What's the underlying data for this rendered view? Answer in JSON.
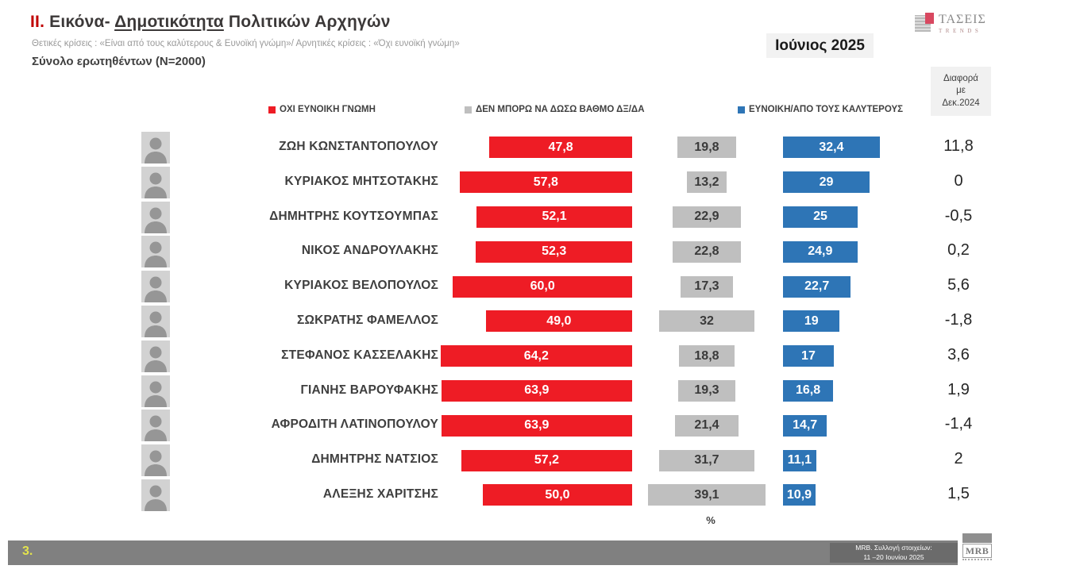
{
  "header": {
    "title_num": "ΙΙ.",
    "title_mid": " Εικόνα- ",
    "title_underlined": "Δημοτικότητα",
    "title_tail": " Πολιτικών Αρχηγών",
    "subtitle": "Θετικές κρίσεις : «Είναι από τους καλύτερους &  Ευνοϊκή γνώμη»/ Αρνητικές κρίσεις : «Όχι ευνοϊκή γνώμη»",
    "sample": "Σύνολο ερωτηθέντων (N=2000)",
    "date_badge": "Ιούνιος 2025",
    "taseis_logo": {
      "name": "ΤΑΣΕΙΣ",
      "sub": "TRENDS"
    },
    "diff_header_lines": [
      "Διαφορά",
      "με",
      "Δεκ.2024"
    ]
  },
  "legend": [
    {
      "label": "ΟΧΙ ΕΥΝΟΙΚΗ ΓΝΩΜΗ",
      "color": "#ee1c25"
    },
    {
      "label": "ΔΕΝ ΜΠΟΡΩ ΝΑ ΔΩΣΩ ΒΑΘΜΟ ΔΞ/ΔΑ",
      "color": "#bfbfbf"
    },
    {
      "label": "ΕΥΝΟΙΚΗ/ΑΠΟ ΤΟΥΣ ΚΑΛΥΤΕΡΟΥΣ",
      "color": "#2e75b6"
    }
  ],
  "chart_data": {
    "type": "bar",
    "title": "Δημοτικότητα Πολιτικών Αρχηγών",
    "unit": "%",
    "xlim": [
      0,
      70
    ],
    "categories": [
      "ΖΩΗ ΚΩΝΣΤΑΝΤΟΠΟΥΛΟΥ",
      "ΚΥΡΙΑΚΟΣ ΜΗΤΣΟΤΑΚΗΣ",
      "ΔΗΜΗΤΡΗΣ ΚΟΥΤΣΟΥΜΠΑΣ",
      "ΝΙΚΟΣ ΑΝΔΡΟΥΛΑΚΗΣ",
      "ΚΥΡΙΑΚΟΣ ΒΕΛΟΠΟΥΛΟΣ",
      "ΣΩΚΡΑΤΗΣ ΦΑΜΕΛΛΟΣ",
      "ΣΤΕΦΑΝΟΣ ΚΑΣΣΕΛΑΚΗΣ",
      "ΓΙΑΝΗΣ ΒΑΡΟΥΦΑΚΗΣ",
      "ΑΦΡΟΔΙΤΗ ΛΑΤΙΝΟΠΟΥΛΟΥ",
      "ΔΗΜΗΤΡΗΣ ΝΑΤΣΙΟΣ",
      "ΑΛΕΞΗΣ ΧΑΡΙΤΣΗΣ"
    ],
    "series": [
      {
        "name": "ΟΧΙ ΕΥΝΟΙΚΗ ΓΝΩΜΗ",
        "color": "#ee1c25",
        "values": [
          47.8,
          57.8,
          52.1,
          52.3,
          60.0,
          49.0,
          64.2,
          63.9,
          63.9,
          57.2,
          50.0
        ],
        "labels": [
          "47,8",
          "57,8",
          "52,1",
          "52,3",
          "60,0",
          "49,0",
          "64,2",
          "63,9",
          "63,9",
          "57,2",
          "50,0"
        ]
      },
      {
        "name": "ΔΕΝ ΜΠΟΡΩ ΝΑ ΔΩΣΩ ΒΑΘΜΟ ΔΞ/ΔΑ",
        "color": "#bfbfbf",
        "values": [
          19.8,
          13.2,
          22.9,
          22.8,
          17.3,
          32,
          18.8,
          19.3,
          21.4,
          31.7,
          39.1
        ],
        "labels": [
          "19,8",
          "13,2",
          "22,9",
          "22,8",
          "17,3",
          "32",
          "18,8",
          "19,3",
          "21,4",
          "31,7",
          "39,1"
        ]
      },
      {
        "name": "ΕΥΝΟΙΚΗ/ΑΠΟ ΤΟΥΣ ΚΑΛΥΤΕΡΟΥΣ",
        "color": "#2e75b6",
        "values": [
          32.4,
          29,
          25,
          24.9,
          22.7,
          19,
          17,
          16.8,
          14.7,
          11.1,
          10.9
        ],
        "labels": [
          "32,4",
          "29",
          "25",
          "24,9",
          "22,7",
          "19",
          "17",
          "16,8",
          "14,7",
          "11,1",
          "10,9"
        ]
      }
    ],
    "diff_with_dec_2024": [
      "11,8",
      "0",
      "-0,5",
      "0,2",
      "5,6",
      "-1,8",
      "3,6",
      "1,9",
      "-1,4",
      "2",
      "1,5"
    ],
    "percent_label": "%"
  },
  "footer": {
    "page_number": "3.",
    "note_line1": "MRB. Συλλογή στοιχείων:",
    "note_line2": "11 –20 Ιουνίου 2025",
    "mrb_logo": "MRB"
  }
}
